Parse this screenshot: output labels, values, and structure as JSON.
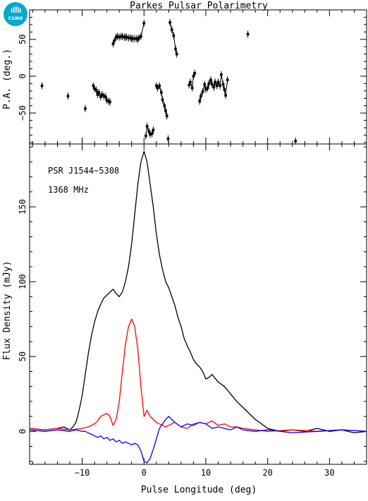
{
  "chart_data": [
    {
      "type": "scatter",
      "title": "Parkes Pulsar Polarimetry",
      "ylabel": "P.A. (deg.)",
      "xlim": [
        -18.5,
        36
      ],
      "ylim": [
        -92,
        90
      ],
      "yticks": [
        -50,
        0,
        50
      ],
      "series": [
        {
          "x": [
            -16.5,
            -12.3,
            -9.5,
            -8.2,
            -8,
            -7.7,
            -7.5,
            -7.3,
            -7,
            -6.8,
            -6.5,
            -6.2,
            -6,
            -5.7,
            -5.5,
            -5,
            -4.8,
            -4.5,
            -4.3,
            -4,
            -3.7,
            -3.5,
            -3.2,
            -3,
            -2.8,
            -2.5,
            -2.2,
            -2,
            -1.8,
            -1.5,
            -1.2,
            -1,
            -0.8,
            -0.5,
            0,
            0.3,
            0.5,
            0.8,
            1,
            1.3,
            1.5,
            2,
            2.2,
            2.5,
            2.8,
            3,
            3.3,
            3.5,
            3.7,
            3.9,
            4.2,
            4.5,
            4.8,
            5.1,
            5.3,
            7.3,
            7.5,
            7.8,
            8,
            8.2,
            9,
            9.2,
            9.5,
            9.8,
            10,
            10.3,
            10.5,
            10.8,
            11,
            11.3,
            11.5,
            11.8,
            12,
            12.3,
            12.5,
            12.8,
            13,
            13.2,
            13.5,
            16.8,
            24.5
          ],
          "y": [
            -13,
            -27,
            -44,
            -13,
            -17,
            -19,
            -25,
            -22,
            -28,
            -25,
            -27,
            -28,
            -33,
            -34,
            -35,
            44,
            48,
            53,
            54,
            53,
            54,
            54,
            53,
            53,
            53,
            52,
            52,
            51,
            51,
            51,
            51,
            50,
            52,
            54,
            72,
            -81,
            -68,
            -75,
            -79,
            -78,
            -73,
            -13,
            -16,
            -13,
            -22,
            -32,
            -40,
            -47,
            -54,
            -85,
            73,
            63,
            55,
            37,
            30,
            -12,
            -8,
            -16,
            0,
            4,
            -34,
            -27,
            -21,
            -11,
            -18,
            -16,
            -10,
            -5,
            -11,
            -15,
            -8,
            -13,
            -8,
            -13,
            2,
            -11,
            -18,
            -26,
            -5,
            57,
            -88
          ]
        }
      ]
    },
    {
      "type": "line",
      "xlabel": "Pulse Longitude (deg)",
      "ylabel": "Flux Density (mJy)",
      "xlim": [
        -18.5,
        36
      ],
      "ylim": [
        -22,
        192
      ],
      "xticks": [
        -10,
        0,
        10,
        20,
        30
      ],
      "yticks": [
        0,
        50,
        100,
        150
      ],
      "annotations": [
        "PSR J1544−5308",
        "1368 MHz"
      ],
      "series": [
        {
          "color": "#000000",
          "x": [
            -18.5,
            -16,
            -14,
            -13,
            -12,
            -11.5,
            -11,
            -10.5,
            -10,
            -9.5,
            -9,
            -8.5,
            -8,
            -7.5,
            -7,
            -6.5,
            -6,
            -5.5,
            -5,
            -4.5,
            -4,
            -3.5,
            -3,
            -2.5,
            -2,
            -1.5,
            -1,
            -0.5,
            0,
            0.5,
            1,
            1.5,
            2,
            2.5,
            3,
            3.5,
            4,
            4.5,
            5,
            5.5,
            6,
            6.5,
            7,
            7.5,
            8,
            8.5,
            9,
            9.5,
            10,
            10.5,
            11,
            12,
            13,
            14,
            15,
            16,
            17,
            18,
            19,
            20,
            21,
            22,
            24,
            26,
            28,
            30,
            32,
            34,
            36
          ],
          "y": [
            2,
            1,
            2,
            3,
            1,
            3,
            6,
            14,
            24,
            38,
            52,
            64,
            73,
            80,
            85,
            89,
            91,
            93,
            95,
            92,
            90,
            93,
            100,
            110,
            125,
            145,
            165,
            180,
            187,
            180,
            165,
            150,
            132,
            118,
            108,
            100,
            96,
            90,
            84,
            76,
            70,
            62,
            57,
            53,
            48,
            45,
            43,
            40,
            35,
            36,
            38,
            33,
            30,
            25,
            20,
            16,
            12,
            8,
            5,
            2,
            1,
            0,
            1,
            0,
            2,
            0,
            1,
            -1,
            0
          ]
        },
        {
          "color": "#ff0000",
          "x": [
            -18.5,
            -16,
            -14,
            -12,
            -10,
            -9,
            -8.5,
            -8,
            -7.5,
            -7,
            -6.5,
            -6,
            -5.5,
            -5,
            -4.5,
            -4,
            -3.5,
            -3,
            -2.5,
            -2,
            -1.5,
            -1,
            -0.5,
            0,
            0.5,
            1,
            1.5,
            2,
            2.5,
            3,
            3.5,
            4,
            5,
            6,
            7,
            8,
            9,
            10,
            11,
            12,
            13,
            14,
            15,
            16,
            18,
            20,
            24,
            28,
            32,
            36
          ],
          "y": [
            2,
            1,
            2,
            1,
            2,
            3,
            4,
            5,
            7,
            10,
            11,
            12,
            10,
            4,
            8,
            20,
            40,
            58,
            70,
            75,
            70,
            55,
            30,
            10,
            14,
            10,
            8,
            6,
            5,
            4,
            3,
            4,
            6,
            3,
            2,
            5,
            6,
            5,
            7,
            4,
            5,
            3,
            3,
            2,
            1,
            0,
            1,
            0,
            1,
            0
          ]
        },
        {
          "color": "#0000ff",
          "x": [
            -18.5,
            -16,
            -14,
            -12,
            -11,
            -10,
            -9.5,
            -9,
            -8.5,
            -8,
            -7.5,
            -7,
            -6.5,
            -6,
            -5.5,
            -5,
            -4.5,
            -4,
            -3.5,
            -3,
            -2.5,
            -2,
            -1.5,
            -1,
            -0.5,
            0,
            0.5,
            1,
            1.5,
            2,
            2.5,
            3,
            3.5,
            4,
            5,
            6,
            7,
            8,
            9,
            10,
            11,
            12,
            13,
            14,
            15,
            16,
            18,
            20,
            24,
            28,
            32,
            36
          ],
          "y": [
            1,
            0,
            1,
            0,
            1,
            0,
            0,
            -1,
            -2,
            -3,
            -4,
            -3,
            -5,
            -4,
            -6,
            -5,
            -7,
            -6,
            -8,
            -7,
            -8,
            -9,
            -8,
            -9,
            -13,
            -20,
            -21,
            -18,
            -12,
            -5,
            2,
            5,
            8,
            10,
            6,
            3,
            5,
            4,
            6,
            5,
            2,
            3,
            2,
            1,
            3,
            1,
            0,
            1,
            -1,
            0,
            1,
            0
          ]
        }
      ]
    }
  ]
}
